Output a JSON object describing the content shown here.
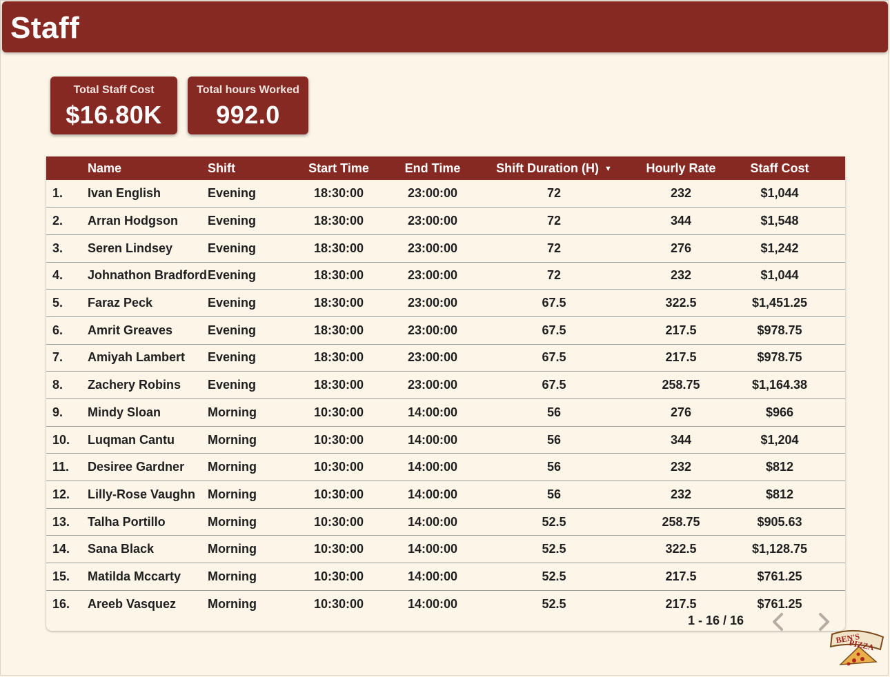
{
  "header": {
    "title": "Staff"
  },
  "kpis": {
    "total_staff_cost": {
      "label": "Total Staff Cost",
      "value": "$16.80K"
    },
    "total_hours": {
      "label": "Total hours Worked",
      "value": "992.0"
    }
  },
  "table": {
    "columns": [
      "Name",
      "Shift",
      "Start Time",
      "End Time",
      "Shift Duration (H)",
      "Hourly Rate",
      "Staff Cost"
    ],
    "sort_column": "Shift Duration (H)",
    "sort_direction": "descending",
    "rows": [
      {
        "idx": "1.",
        "name": "Ivan English",
        "shift": "Evening",
        "start": "18:30:00",
        "end": "23:00:00",
        "duration": "72",
        "rate": "232",
        "cost": "$1,044"
      },
      {
        "idx": "2.",
        "name": "Arran Hodgson",
        "shift": "Evening",
        "start": "18:30:00",
        "end": "23:00:00",
        "duration": "72",
        "rate": "344",
        "cost": "$1,548"
      },
      {
        "idx": "3.",
        "name": "Seren Lindsey",
        "shift": "Evening",
        "start": "18:30:00",
        "end": "23:00:00",
        "duration": "72",
        "rate": "276",
        "cost": "$1,242"
      },
      {
        "idx": "4.",
        "name": "Johnathon Bradford",
        "shift": "Evening",
        "start": "18:30:00",
        "end": "23:00:00",
        "duration": "72",
        "rate": "232",
        "cost": "$1,044"
      },
      {
        "idx": "5.",
        "name": "Faraz Peck",
        "shift": "Evening",
        "start": "18:30:00",
        "end": "23:00:00",
        "duration": "67.5",
        "rate": "322.5",
        "cost": "$1,451.25"
      },
      {
        "idx": "6.",
        "name": "Amrit Greaves",
        "shift": "Evening",
        "start": "18:30:00",
        "end": "23:00:00",
        "duration": "67.5",
        "rate": "217.5",
        "cost": "$978.75"
      },
      {
        "idx": "7.",
        "name": "Amiyah Lambert",
        "shift": "Evening",
        "start": "18:30:00",
        "end": "23:00:00",
        "duration": "67.5",
        "rate": "217.5",
        "cost": "$978.75"
      },
      {
        "idx": "8.",
        "name": "Zachery Robins",
        "shift": "Evening",
        "start": "18:30:00",
        "end": "23:00:00",
        "duration": "67.5",
        "rate": "258.75",
        "cost": "$1,164.38"
      },
      {
        "idx": "9.",
        "name": "Mindy Sloan",
        "shift": "Morning",
        "start": "10:30:00",
        "end": "14:00:00",
        "duration": "56",
        "rate": "276",
        "cost": "$966"
      },
      {
        "idx": "10.",
        "name": "Luqman Cantu",
        "shift": "Morning",
        "start": "10:30:00",
        "end": "14:00:00",
        "duration": "56",
        "rate": "344",
        "cost": "$1,204"
      },
      {
        "idx": "11.",
        "name": "Desiree Gardner",
        "shift": "Morning",
        "start": "10:30:00",
        "end": "14:00:00",
        "duration": "56",
        "rate": "232",
        "cost": "$812"
      },
      {
        "idx": "12.",
        "name": "Lilly-Rose Vaughn",
        "shift": "Morning",
        "start": "10:30:00",
        "end": "14:00:00",
        "duration": "56",
        "rate": "232",
        "cost": "$812"
      },
      {
        "idx": "13.",
        "name": "Talha Portillo",
        "shift": "Morning",
        "start": "10:30:00",
        "end": "14:00:00",
        "duration": "52.5",
        "rate": "258.75",
        "cost": "$905.63"
      },
      {
        "idx": "14.",
        "name": "Sana Black",
        "shift": "Morning",
        "start": "10:30:00",
        "end": "14:00:00",
        "duration": "52.5",
        "rate": "322.5",
        "cost": "$1,128.75"
      },
      {
        "idx": "15.",
        "name": "Matilda Mccarty",
        "shift": "Morning",
        "start": "10:30:00",
        "end": "14:00:00",
        "duration": "52.5",
        "rate": "217.5",
        "cost": "$761.25"
      },
      {
        "idx": "16.",
        "name": "Areeb Vasquez",
        "shift": "Morning",
        "start": "10:30:00",
        "end": "14:00:00",
        "duration": "52.5",
        "rate": "217.5",
        "cost": "$761.25"
      }
    ]
  },
  "pagination": {
    "text": "1 - 16 / 16"
  },
  "logo": {
    "text_line1": "BEN'S",
    "text_line2": "PIZZA"
  },
  "colors": {
    "brand": "#862923",
    "background": "#fdf5e8",
    "chevron": "#b7aba2"
  },
  "icons": {
    "sort": "sort-descending-icon",
    "prev": "chevron-left-icon",
    "next": "chevron-right-icon"
  }
}
